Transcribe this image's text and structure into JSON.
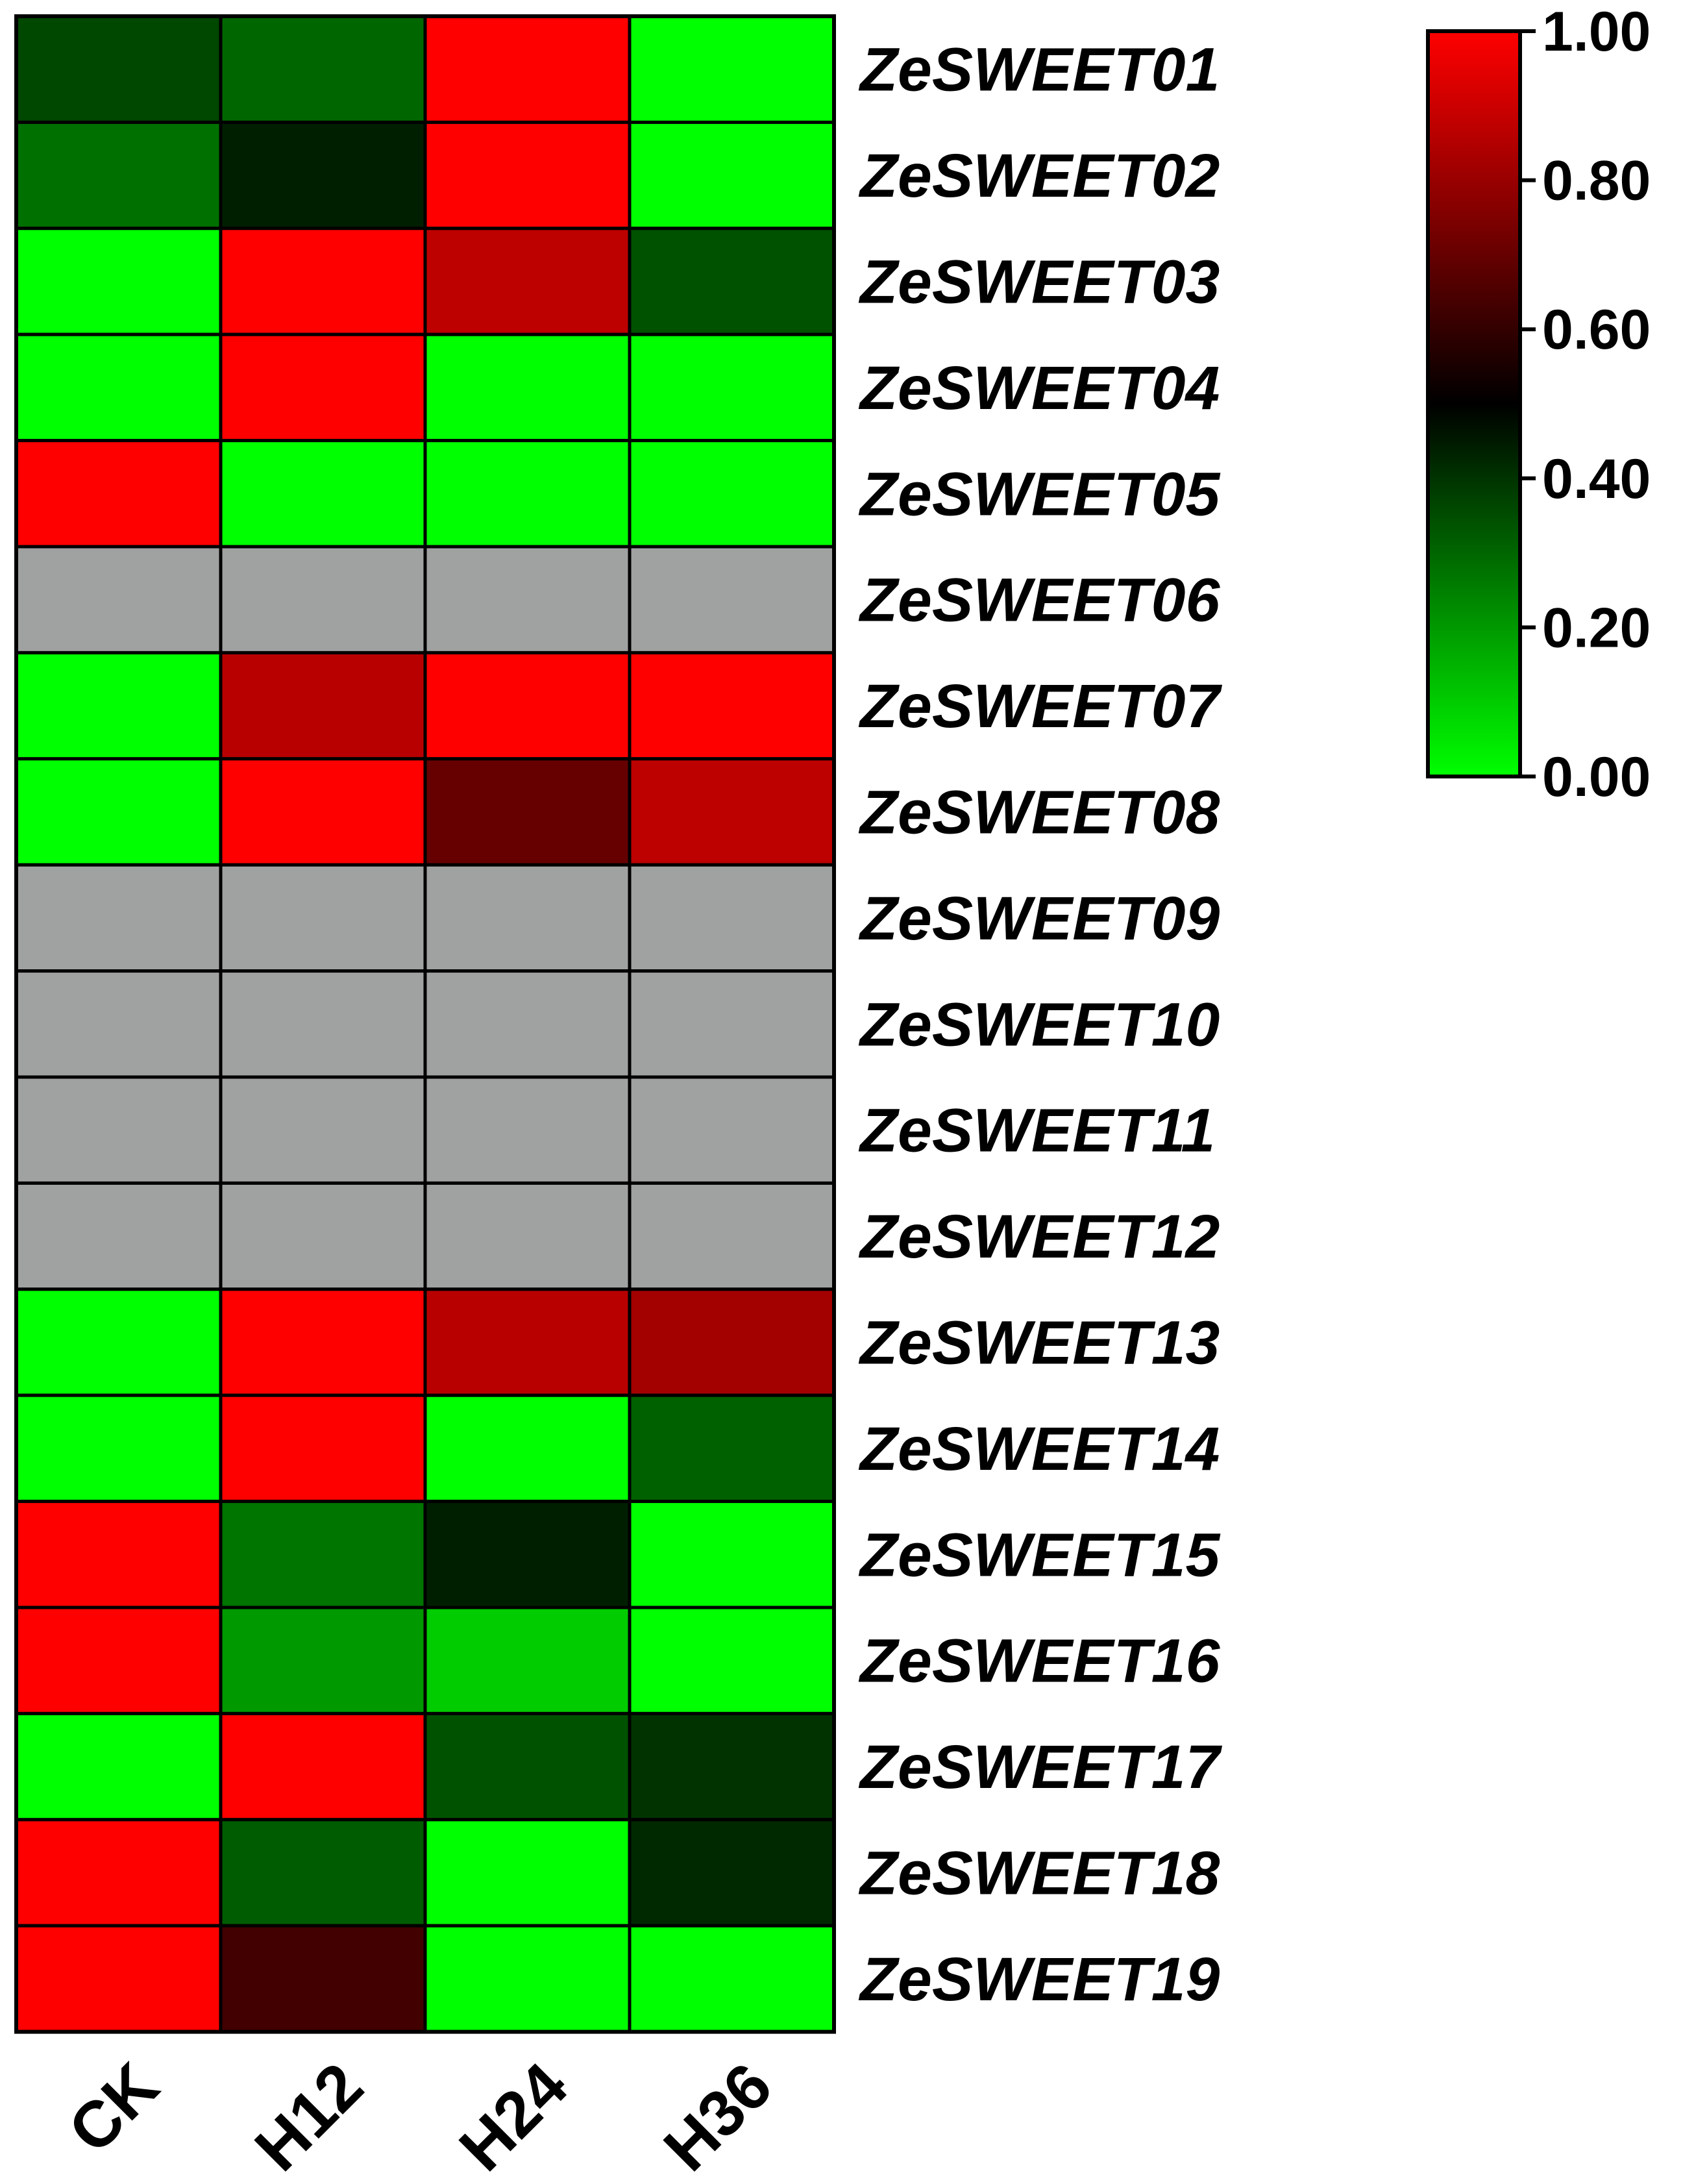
{
  "chart_data": {
    "type": "heatmap",
    "title": "",
    "xlabel": "",
    "ylabel": "",
    "columns": [
      "CK",
      "H12",
      "H24",
      "H36"
    ],
    "rows": [
      "ZeSWEET01",
      "ZeSWEET02",
      "ZeSWEET03",
      "ZeSWEET04",
      "ZeSWEET05",
      "ZeSWEET06",
      "ZeSWEET07",
      "ZeSWEET08",
      "ZeSWEET09",
      "ZeSWEET10",
      "ZeSWEET11",
      "ZeSWEET12",
      "ZeSWEET13",
      "ZeSWEET14",
      "ZeSWEET15",
      "ZeSWEET16",
      "ZeSWEET17",
      "ZeSWEET18",
      "ZeSWEET19"
    ],
    "values": [
      [
        0.36,
        0.3,
        1.0,
        0.0
      ],
      [
        0.28,
        0.44,
        1.0,
        0.0
      ],
      [
        0.0,
        1.0,
        0.87,
        0.34
      ],
      [
        0.0,
        1.0,
        0.0,
        0.0
      ],
      [
        1.0,
        0.0,
        0.0,
        0.0
      ],
      [
        null,
        null,
        null,
        null
      ],
      [
        0.0,
        0.86,
        1.0,
        1.0
      ],
      [
        0.0,
        1.0,
        0.7,
        0.87
      ],
      [
        null,
        null,
        null,
        null
      ],
      [
        null,
        null,
        null,
        null
      ],
      [
        null,
        null,
        null,
        null
      ],
      [
        null,
        null,
        null,
        null
      ],
      [
        0.0,
        1.0,
        0.86,
        0.82
      ],
      [
        0.0,
        1.0,
        0.0,
        0.31
      ],
      [
        1.0,
        0.27,
        0.44,
        0.0
      ],
      [
        1.0,
        0.2,
        0.1,
        0.0
      ],
      [
        0.0,
        1.0,
        0.34,
        0.4
      ],
      [
        1.0,
        0.32,
        0.0,
        0.42
      ],
      [
        1.0,
        0.63,
        0.0,
        0.0
      ]
    ],
    "zlim": [
      0,
      1
    ],
    "missing_color": "#a0a2a1",
    "colormap": [
      "#00ff00",
      "#000000",
      "#ff0000"
    ],
    "colorbar": {
      "ticks": [
        "0.00",
        "0.20",
        "0.40",
        "0.60",
        "0.80",
        "1.00"
      ],
      "placement": "top-right"
    }
  }
}
